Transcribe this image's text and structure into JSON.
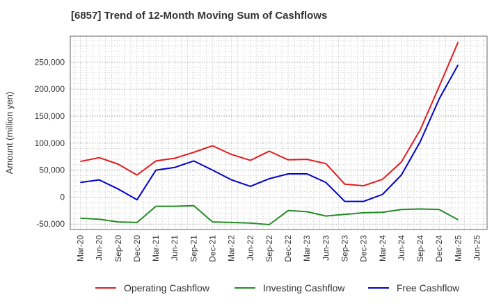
{
  "chart_data": {
    "type": "line",
    "title": "[6857]  Trend of 12-Month Moving Sum of Cashflows",
    "ylabel": "Amount (million yen)",
    "xlabel": "",
    "categories": [
      "Mar-20",
      "Jun-20",
      "Sep-20",
      "Dec-20",
      "Mar-21",
      "Jun-21",
      "Sep-21",
      "Dec-21",
      "Mar-22",
      "Jun-22",
      "Sep-22",
      "Dec-22",
      "Mar-23",
      "Jun-23",
      "Sep-23",
      "Dec-23",
      "Mar-24",
      "Jun-24",
      "Sep-24",
      "Dec-24",
      "Mar-25",
      "Jun-25"
    ],
    "ylim": [
      -60000,
      298000
    ],
    "yticks": [
      -50000,
      0,
      50000,
      100000,
      150000,
      200000,
      250000
    ],
    "ytick_labels": [
      "-50,000",
      "0",
      "50,000",
      "100,000",
      "150,000",
      "200,000",
      "250,000"
    ],
    "grid": true,
    "legend_position": "bottom",
    "series": [
      {
        "name": "Operating Cashflow",
        "color": "#e31a1c",
        "values": [
          66000,
          73000,
          61000,
          41000,
          67000,
          72000,
          83000,
          95000,
          79000,
          68000,
          85000,
          69000,
          70000,
          62000,
          24000,
          21000,
          33000,
          65000,
          125000,
          205000,
          287000,
          null
        ]
      },
      {
        "name": "Investing Cashflow",
        "color": "#238b23",
        "values": [
          -39000,
          -41000,
          -46000,
          -47000,
          -17000,
          -17000,
          -16000,
          -46000,
          -47000,
          -48000,
          -51000,
          -25000,
          -27000,
          -35000,
          -32000,
          -29000,
          -28000,
          -23000,
          -22000,
          -23000,
          -42000,
          null
        ]
      },
      {
        "name": "Free Cashflow",
        "color": "#0000cc",
        "values": [
          27000,
          32000,
          15000,
          -5000,
          50000,
          55000,
          67000,
          50000,
          32000,
          20000,
          34000,
          43000,
          43000,
          27000,
          -8000,
          -8000,
          5000,
          41000,
          103000,
          182000,
          245000,
          null
        ]
      }
    ]
  }
}
